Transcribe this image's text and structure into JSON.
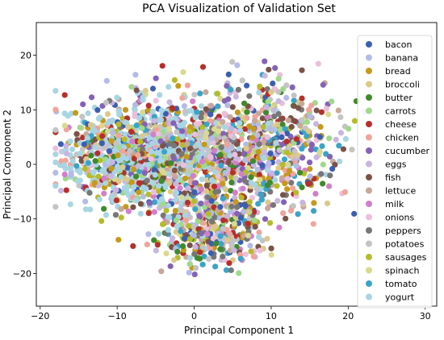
{
  "chart_data": {
    "type": "scatter",
    "title": "PCA Visualization of Validation Set",
    "xlabel": "Principal Component 1",
    "ylabel": "Principal Component 2",
    "xlim": [
      -20.5,
      31.5
    ],
    "ylim": [
      -26,
      26
    ],
    "xticks": [
      -20,
      -10,
      0,
      10,
      20,
      30
    ],
    "yticks": [
      -20,
      -10,
      0,
      10,
      20
    ],
    "grid": false,
    "legend_position": "right",
    "series": [
      {
        "name": "bacon",
        "color": "#3b5fb0"
      },
      {
        "name": "banana",
        "color": "#b3bbe6"
      },
      {
        "name": "bread",
        "color": "#c49a1b"
      },
      {
        "name": "broccoli",
        "color": "#dcc98a"
      },
      {
        "name": "butter",
        "color": "#3f8a2a"
      },
      {
        "name": "carrots",
        "color": "#9fd98a"
      },
      {
        "name": "cheese",
        "color": "#b5302c"
      },
      {
        "name": "chicken",
        "color": "#f0a49a"
      },
      {
        "name": "cucumber",
        "color": "#8463b5"
      },
      {
        "name": "eggs",
        "color": "#c8b6df"
      },
      {
        "name": "fish",
        "color": "#7a5348"
      },
      {
        "name": "lettuce",
        "color": "#c7a79a"
      },
      {
        "name": "milk",
        "color": "#d27fcb"
      },
      {
        "name": "onions",
        "color": "#ebbfdb"
      },
      {
        "name": "peppers",
        "color": "#777777"
      },
      {
        "name": "potatoes",
        "color": "#c4c4c4"
      },
      {
        "name": "sausages",
        "color": "#b5bc2b"
      },
      {
        "name": "spinach",
        "color": "#d9d98f"
      },
      {
        "name": "tomato",
        "color": "#3aa4c8"
      },
      {
        "name": "yogurt",
        "color": "#a8d5e3"
      }
    ]
  }
}
